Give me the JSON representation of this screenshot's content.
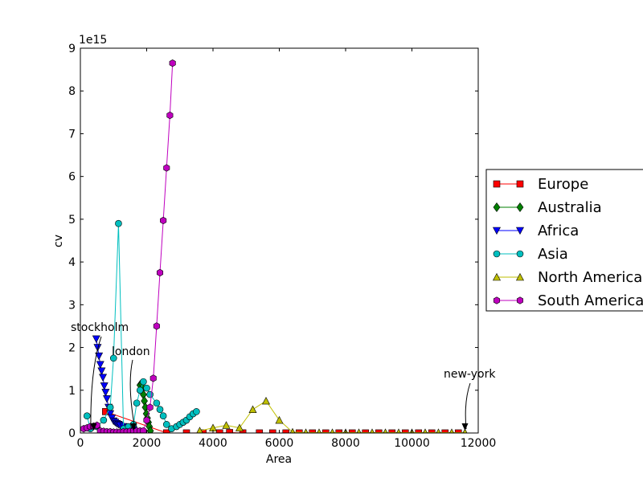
{
  "chart_data": {
    "type": "line",
    "title": "",
    "xlabel": "Area",
    "ylabel": "cv",
    "xlim": [
      0,
      12000
    ],
    "ylim": [
      0,
      9000000000000000.0
    ],
    "x_ticks": [
      0,
      2000,
      4000,
      6000,
      8000,
      10000,
      12000
    ],
    "y_ticks": [
      0,
      1,
      2,
      3,
      4,
      5,
      6,
      7,
      8,
      9
    ],
    "y_tick_labels": [
      "0",
      "1",
      "2",
      "3",
      "4",
      "5",
      "6",
      "7",
      "8",
      "9"
    ],
    "y_offset_label": "1e15",
    "grid": false,
    "legend_position": "right, outside plot",
    "series": [
      {
        "name": "Europe",
        "color": "#ff0000",
        "marker": "square",
        "points": [
          [
            760,
            500000000000000.0
          ],
          [
            2600,
            2000000000000.0
          ],
          [
            3200,
            1000000000000.0
          ],
          [
            3700,
            2000000000000.0
          ],
          [
            4200,
            2000000000000.0
          ],
          [
            4500,
            10000000000000.0
          ],
          [
            4900,
            2000000000000.0
          ],
          [
            5400,
            1000000000000.0
          ],
          [
            5800,
            1000000000000.0
          ],
          [
            6200,
            1000000000000.0
          ],
          [
            6600,
            1000000000000.0
          ],
          [
            7000,
            1000000000000.0
          ],
          [
            7400,
            1000000000000.0
          ],
          [
            7800,
            1000000000000.0
          ],
          [
            8200,
            1000000000000.0
          ],
          [
            8600,
            1000000000000.0
          ],
          [
            9000,
            1000000000000.0
          ],
          [
            9400,
            1000000000000.0
          ],
          [
            9800,
            1000000000000.0
          ],
          [
            10200,
            1000000000000.0
          ],
          [
            10600,
            1000000000000.0
          ],
          [
            11000,
            1000000000000.0
          ],
          [
            11400,
            1000000000000.0
          ]
        ]
      },
      {
        "name": "Australia",
        "color": "#008000",
        "marker": "diamond",
        "points": [
          [
            1800,
            1120000000000000.0
          ],
          [
            1850,
            1150000000000000.0
          ],
          [
            1880,
            1050000000000000.0
          ],
          [
            1900,
            900000000000000.0
          ],
          [
            1930,
            750000000000000.0
          ],
          [
            1960,
            600000000000000.0
          ],
          [
            1990,
            450000000000000.0
          ],
          [
            2020,
            350000000000000.0
          ],
          [
            2050,
            250000000000000.0
          ],
          [
            2080,
            150000000000000.0
          ],
          [
            2110,
            50000000000000.0
          ]
        ]
      },
      {
        "name": "Africa",
        "color": "#0000ff",
        "marker": "triangle-down",
        "points": [
          [
            480,
            2200000000000000.0
          ],
          [
            520,
            2000000000000000.0
          ],
          [
            560,
            1800000000000000.0
          ],
          [
            600,
            1600000000000000.0
          ],
          [
            640,
            1450000000000000.0
          ],
          [
            680,
            1300000000000000.0
          ],
          [
            720,
            1100000000000000.0
          ],
          [
            760,
            950000000000000.0
          ],
          [
            800,
            800000000000000.0
          ],
          [
            850,
            600000000000000.0
          ],
          [
            900,
            450000000000000.0
          ],
          [
            950,
            350000000000000.0
          ],
          [
            1000,
            280000000000000.0
          ],
          [
            1050,
            250000000000000.0
          ],
          [
            1100,
            220000000000000.0
          ],
          [
            1150,
            200000000000000.0
          ],
          [
            1200,
            180000000000000.0
          ],
          [
            1300,
            150000000000000.0
          ],
          [
            1400,
            120000000000000.0
          ],
          [
            1500,
            100000000000000.0
          ],
          [
            1600,
            80000000000000.0
          ]
        ]
      },
      {
        "name": "Asia",
        "color": "#00bfbf",
        "marker": "circle",
        "points": [
          [
            200,
            400000000000000.0
          ],
          [
            300,
            100000000000000.0
          ],
          [
            500,
            150000000000000.0
          ],
          [
            700,
            300000000000000.0
          ],
          [
            900,
            600000000000000.0
          ],
          [
            1000,
            1750000000000000.0
          ],
          [
            1150,
            4900000000000000.0
          ],
          [
            1300,
            100000000000000.0
          ],
          [
            1450,
            150000000000000.0
          ],
          [
            1600,
            200000000000000.0
          ],
          [
            1700,
            700000000000000.0
          ],
          [
            1800,
            1000000000000000.0
          ],
          [
            1900,
            1200000000000000.0
          ],
          [
            2000,
            1050000000000000.0
          ],
          [
            2100,
            900000000000000.0
          ],
          [
            2300,
            700000000000000.0
          ],
          [
            2400,
            550000000000000.0
          ],
          [
            2500,
            400000000000000.0
          ],
          [
            2600,
            200000000000000.0
          ],
          [
            2750,
            100000000000000.0
          ],
          [
            2900,
            150000000000000.0
          ],
          [
            3000,
            200000000000000.0
          ],
          [
            3100,
            250000000000000.0
          ],
          [
            3200,
            300000000000000.0
          ],
          [
            3300,
            380000000000000.0
          ],
          [
            3400,
            450000000000000.0
          ],
          [
            3500,
            500000000000000.0
          ]
        ]
      },
      {
        "name": "North America",
        "color": "#bfbf00",
        "marker": "triangle-up",
        "points": [
          [
            3600,
            50000000000000.0
          ],
          [
            4000,
            120000000000000.0
          ],
          [
            4400,
            180000000000000.0
          ],
          [
            4800,
            120000000000000.0
          ],
          [
            5200,
            550000000000000.0
          ],
          [
            5600,
            750000000000000.0
          ],
          [
            6000,
            300000000000000.0
          ],
          [
            6400,
            20000000000000.0
          ],
          [
            6800,
            10000000000000.0
          ],
          [
            7200,
            10000000000000.0
          ],
          [
            7600,
            10000000000000.0
          ],
          [
            8000,
            10000000000000.0
          ],
          [
            8400,
            10000000000000.0
          ],
          [
            8800,
            10000000000000.0
          ],
          [
            9200,
            10000000000000.0
          ],
          [
            9600,
            10000000000000.0
          ],
          [
            10000,
            10000000000000.0
          ],
          [
            10400,
            10000000000000.0
          ],
          [
            10800,
            10000000000000.0
          ],
          [
            11200,
            10000000000000.0
          ],
          [
            11600,
            10000000000000.0
          ]
        ]
      },
      {
        "name": "South America",
        "color": "#bf00bf",
        "marker": "hexagon",
        "points": [
          [
            100,
            100000000000000.0
          ],
          [
            200,
            120000000000000.0
          ],
          [
            300,
            150000000000000.0
          ],
          [
            400,
            160000000000000.0
          ],
          [
            500,
            180000000000000.0
          ],
          [
            600,
            50000000000000.0
          ],
          [
            700,
            40000000000000.0
          ],
          [
            800,
            30000000000000.0
          ],
          [
            900,
            30000000000000.0
          ],
          [
            1000,
            20000000000000.0
          ],
          [
            1100,
            20000000000000.0
          ],
          [
            1200,
            20000000000000.0
          ],
          [
            1300,
            30000000000000.0
          ],
          [
            1400,
            30000000000000.0
          ],
          [
            1500,
            40000000000000.0
          ],
          [
            1600,
            50000000000000.0
          ],
          [
            1700,
            50000000000000.0
          ],
          [
            1800,
            50000000000000.0
          ],
          [
            1900,
            50000000000000.0
          ],
          [
            2000,
            300000000000000.0
          ],
          [
            2100,
            600000000000000.0
          ],
          [
            2200,
            1280000000000000.0
          ],
          [
            2300,
            2500000000000000.0
          ],
          [
            2400,
            3750000000000000.0
          ],
          [
            2500,
            4970000000000000.0
          ],
          [
            2600,
            6200000000000000.0
          ],
          [
            2700,
            7430000000000000.0
          ],
          [
            2780,
            8650000000000000.0
          ]
        ]
      }
    ],
    "annotations": [
      {
        "text": "stockholm",
        "x": 400,
        "y": 50000000000000.0
      },
      {
        "text": "london",
        "x": 1600,
        "y": 50000000000000.0
      },
      {
        "text": "new-york",
        "x": 11600,
        "y": 10000000000000.0
      }
    ]
  }
}
